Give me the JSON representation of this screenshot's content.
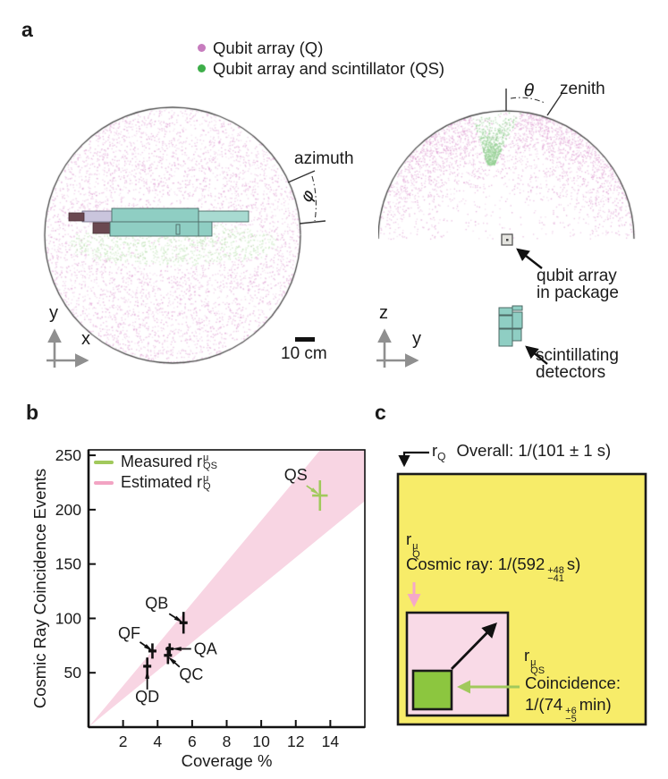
{
  "palette": {
    "pink_scatter": "#DD9AD0",
    "green_scatter_light": "#BCE2B2",
    "green_wedge": "#93CF92",
    "legend_pink_dot": "#C77CBE",
    "legend_green_dot": "#3DAE49",
    "teal_detector": "#8FCEC3",
    "teal_detector_light": "#A8DAD1",
    "lavender_part": "#CAC5DD",
    "maroon_part": "#6A4850",
    "axis_gray": "#8F8F8F",
    "band_pink": "#F8D5E3",
    "estimated_pink": "#F2A4C3",
    "measured_green": "#A1C95C",
    "panel_c_yellow": "#F7EC69",
    "panel_c_pink": "#F9DAE7",
    "panel_c_green": "#8CC63F",
    "arrow_pink": "#F5A8C9",
    "arrow_green": "#A1C95C",
    "package_gray": "#E4E4DF"
  },
  "panel_a": {
    "label": "a",
    "legend": [
      {
        "label": "Qubit array (Q)"
      },
      {
        "label": "Qubit array and scintillator (QS)"
      }
    ],
    "left": {
      "azimuth": "azimuth",
      "phi": "φ",
      "axis_up": "y",
      "axis_right": "x",
      "scale_bar": "10 cm"
    },
    "right": {
      "theta": "θ",
      "zenith": "zenith",
      "axis_up": "z",
      "axis_right": "y",
      "package_label": [
        "qubit array",
        "in package"
      ],
      "scint_label": [
        "scintillating",
        "detectors"
      ]
    }
  },
  "panel_b": {
    "label": "b"
  },
  "chart_data": {
    "type": "scatter",
    "xlabel": "Coverage %",
    "ylabel": "Cosmic Ray Coincidence Events",
    "xlim": [
      0,
      16
    ],
    "ylim": [
      0,
      255
    ],
    "x_ticks": [
      2,
      4,
      6,
      8,
      10,
      12,
      14
    ],
    "y_ticks": [
      50,
      100,
      150,
      200,
      250
    ],
    "grid": false,
    "legend_position": "top-left",
    "points": [
      {
        "name": "QD",
        "x": 3.4,
        "y": 56,
        "yerr": 8,
        "series": "Q"
      },
      {
        "name": "QF",
        "x": 3.7,
        "y": 70,
        "yerr": 7,
        "series": "Q"
      },
      {
        "name": "QC",
        "x": 4.6,
        "y": 66,
        "yerr": 8,
        "series": "Q"
      },
      {
        "name": "QA",
        "x": 4.7,
        "y": 72,
        "yerr": 5,
        "series": "Q"
      },
      {
        "name": "QB",
        "x": 5.5,
        "y": 96,
        "yerr": 10,
        "series": "Q"
      },
      {
        "name": "QS",
        "x": 13.4,
        "y": 213,
        "yerr": 14,
        "xerr": 0.45,
        "series": "QS"
      }
    ],
    "band": {
      "origin": [
        0,
        0
      ],
      "slope_low": 13.0,
      "slope_high": 19.0
    },
    "legend": [
      {
        "series": "QS",
        "prefix": "Measured r",
        "sup": "μ",
        "sub": "QS"
      },
      {
        "series": "Q",
        "prefix": "Estimated r",
        "sup": "μ",
        "sub": "Q"
      }
    ]
  },
  "panel_c": {
    "label": "c",
    "overall": {
      "r": "r",
      "sub": "Q",
      "text": "Overall: 1/(101 ± 1 s)"
    },
    "cosmic": {
      "r": "r",
      "sup": "μ",
      "sub": "Q",
      "pre": "Cosmic ray: 1/(592",
      "err_up": "+48",
      "err_dn": "−41",
      "post": "s)"
    },
    "coincidence": {
      "r": "r",
      "sup": "μ",
      "sub": "QS",
      "line1": "Coincidence:",
      "pre": "1/(74",
      "err_up": "+6",
      "err_dn": "−5",
      "post": "min)"
    }
  }
}
